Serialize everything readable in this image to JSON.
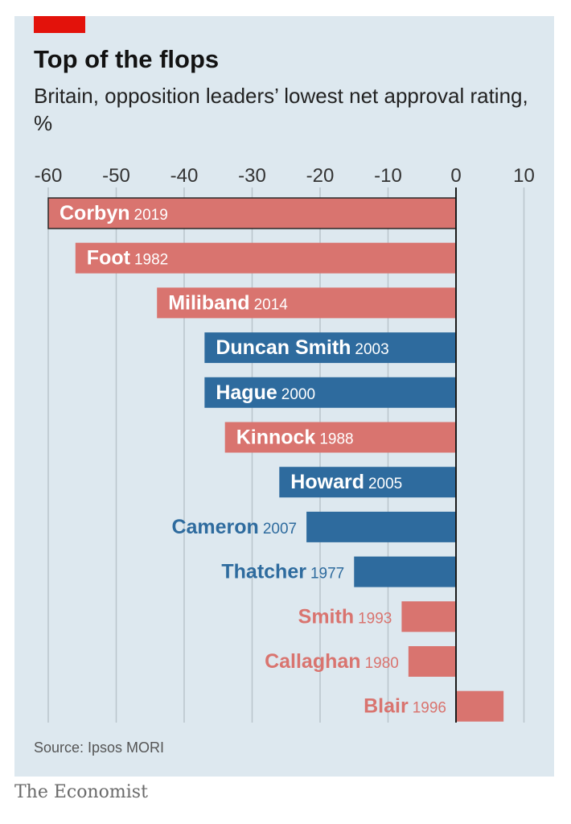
{
  "title": "Top of the flops",
  "subtitle": "Britain, opposition leaders’ lowest net approval rating, %",
  "source": "Source: Ipsos MORI",
  "brand": "The Economist",
  "colors": {
    "accent": "#e3120b",
    "labour": "#d9746f",
    "conservative": "#2e6b9e",
    "panel": "#dde8ef",
    "grid": "#b9c4cb",
    "axis_text": "#333333"
  },
  "chart_data": {
    "type": "bar",
    "orientation": "horizontal",
    "title": "Top of the flops",
    "subtitle": "Britain, opposition leaders’ lowest net approval rating, %",
    "xlim": [
      -60,
      10
    ],
    "xticks": [
      -60,
      -50,
      -40,
      -30,
      -20,
      -10,
      0,
      10
    ],
    "xtick_labels": [
      "-60",
      "-50",
      "-40",
      "-30",
      "-20",
      "-10",
      "0",
      "10"
    ],
    "grid": true,
    "legend": "none",
    "bars": [
      {
        "name": "Corbyn",
        "year": "2019",
        "value": -60,
        "party": "labour",
        "highlight": true
      },
      {
        "name": "Foot",
        "year": "1982",
        "value": -56,
        "party": "labour"
      },
      {
        "name": "Miliband",
        "year": "2014",
        "value": -44,
        "party": "labour"
      },
      {
        "name": "Duncan Smith",
        "year": "2003",
        "value": -37,
        "party": "conservative"
      },
      {
        "name": "Hague",
        "year": "2000",
        "value": -37,
        "party": "conservative"
      },
      {
        "name": "Kinnock",
        "year": "1988",
        "value": -34,
        "party": "labour"
      },
      {
        "name": "Howard",
        "year": "2005",
        "value": -26,
        "party": "conservative"
      },
      {
        "name": "Cameron",
        "year": "2007",
        "value": -22,
        "party": "conservative"
      },
      {
        "name": "Thatcher",
        "year": "1977",
        "value": -15,
        "party": "conservative"
      },
      {
        "name": "Smith",
        "year": "1993",
        "value": -8,
        "party": "labour"
      },
      {
        "name": "Callaghan",
        "year": "1980",
        "value": -7,
        "party": "labour"
      },
      {
        "name": "Blair",
        "year": "1996",
        "value": 7,
        "party": "labour"
      }
    ]
  }
}
